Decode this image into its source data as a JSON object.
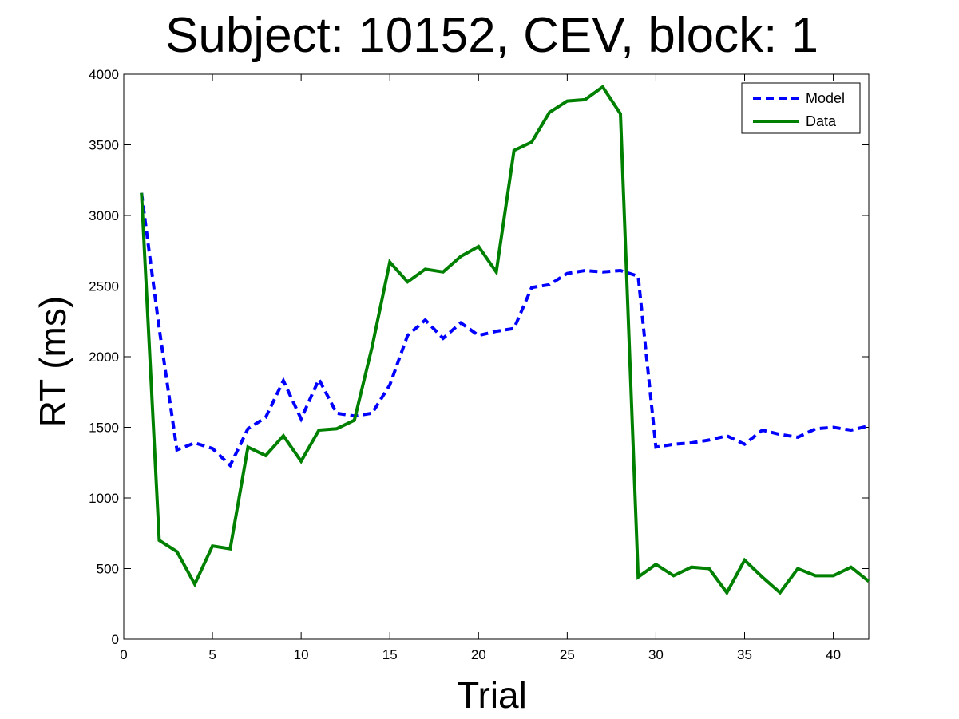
{
  "chart_data": {
    "type": "line",
    "title": "Subject: 10152, CEV, block: 1",
    "xlabel": "Trial",
    "ylabel": "RT (ms)",
    "xlim": [
      0,
      42
    ],
    "ylim": [
      0,
      4000
    ],
    "xticks": [
      0,
      5,
      10,
      15,
      20,
      25,
      30,
      35,
      40
    ],
    "yticks": [
      0,
      500,
      1000,
      1500,
      2000,
      2500,
      3000,
      3500,
      4000
    ],
    "grid": false,
    "legend_position": "top-right",
    "x": [
      1,
      2,
      3,
      4,
      5,
      6,
      7,
      8,
      9,
      10,
      11,
      12,
      13,
      14,
      15,
      16,
      17,
      18,
      19,
      20,
      21,
      22,
      23,
      24,
      25,
      26,
      27,
      28,
      29,
      30,
      31,
      32,
      33,
      34,
      35,
      36,
      37,
      38,
      39,
      40,
      41,
      42
    ],
    "series": [
      {
        "name": "Model",
        "color": "#0000ff",
        "style": "dashed",
        "values": [
          3160,
          2200,
          1340,
          1390,
          1350,
          1230,
          1490,
          1570,
          1830,
          1560,
          1840,
          1600,
          1580,
          1600,
          1800,
          2150,
          2260,
          2130,
          2240,
          2150,
          2180,
          2200,
          2490,
          2510,
          2590,
          2610,
          2600,
          2610,
          2570,
          1360,
          1380,
          1390,
          1410,
          1440,
          1380,
          1480,
          1450,
          1430,
          1490,
          1500,
          1480,
          1510
        ]
      },
      {
        "name": "Data",
        "color": "#008000",
        "style": "solid",
        "values": [
          3160,
          700,
          620,
          390,
          660,
          640,
          1360,
          1300,
          1440,
          1260,
          1480,
          1490,
          1550,
          2070,
          2670,
          2530,
          2620,
          2600,
          2710,
          2780,
          2600,
          3460,
          3520,
          3730,
          3810,
          3820,
          3910,
          3720,
          440,
          530,
          450,
          510,
          500,
          330,
          560,
          440,
          330,
          500,
          450,
          450,
          510,
          410
        ]
      }
    ]
  }
}
